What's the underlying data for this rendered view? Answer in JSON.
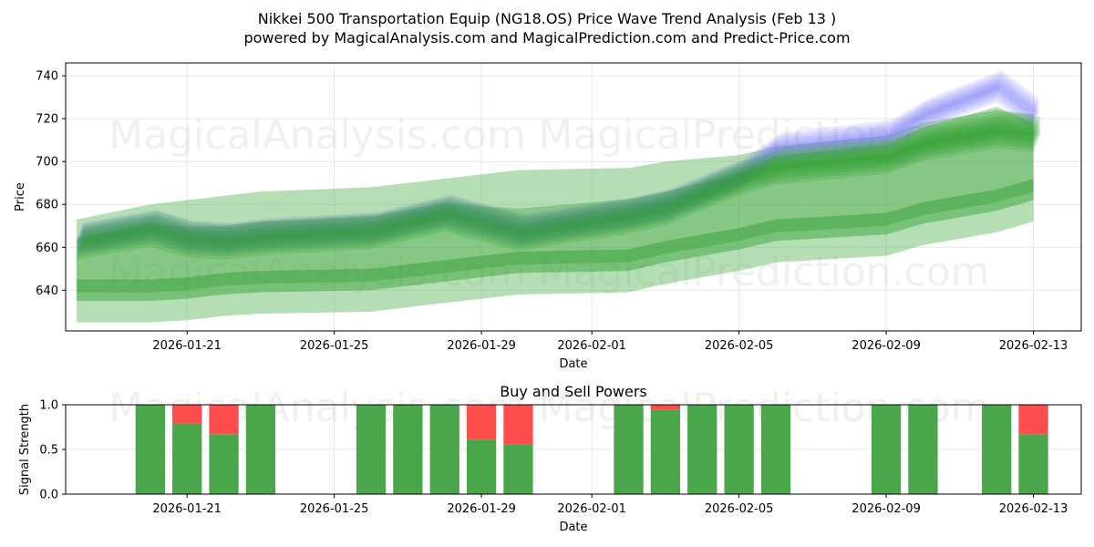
{
  "title_line1": "Nikkei 500 Transportation Equip (NG18.OS) Price Wave Trend Analysis (Feb 13 )",
  "title_line2": "powered by MagicalAnalysis.com and MagicalPrediction.com and Predict-Price.com",
  "watermarks": [
    "MagicalAnalysis.com",
    "MagicalPrediction.com"
  ],
  "colors": {
    "price_band": "#2e9e2e",
    "price_band_light": "#5ab55a",
    "wave": "#6a6af5",
    "buy": "#4aa64a",
    "sell": "#ff4c4c",
    "grid": "#e6e6e6"
  },
  "chart_data": [
    {
      "type": "area",
      "title": "",
      "xlabel": "Date",
      "ylabel": "Price",
      "xlim": [
        "2026-01-17.7",
        "2026-02-14.3"
      ],
      "ylim": [
        621,
        746
      ],
      "x_ticks": [
        "2026-01-21",
        "2026-01-25",
        "2026-01-29",
        "2026-02-01",
        "2026-02-05",
        "2026-02-09",
        "2026-02-13"
      ],
      "y_ticks": [
        640,
        660,
        680,
        700,
        720,
        740
      ],
      "dates": [
        "2026-01-18",
        "2026-01-20",
        "2026-01-21",
        "2026-01-22",
        "2026-01-23",
        "2026-01-26",
        "2026-01-28",
        "2026-01-30",
        "2026-02-02",
        "2026-02-03",
        "2026-02-05",
        "2026-02-06",
        "2026-02-09",
        "2026-02-10",
        "2026-02-12",
        "2026-02-13"
      ],
      "series": [
        {
          "name": "wave-trend-center",
          "values": [
            664,
            670,
            665,
            664,
            666,
            669,
            677,
            668,
            676,
            680,
            694,
            706,
            712,
            722,
            735,
            722
          ]
        },
        {
          "name": "green-band-upper",
          "values": [
            673,
            680,
            682,
            684,
            686,
            688,
            692,
            696,
            697,
            700,
            703,
            707,
            712,
            718,
            724,
            722
          ]
        },
        {
          "name": "green-band-lower",
          "values": [
            625,
            625,
            626,
            628,
            629,
            630,
            634,
            638,
            639,
            643,
            649,
            653,
            656,
            661,
            667,
            672
          ]
        }
      ]
    },
    {
      "type": "bar",
      "title": "Buy and Sell Powers",
      "xlabel": "Date",
      "ylabel": "Signal Strength",
      "ylim": [
        0,
        1
      ],
      "y_ticks": [
        "0.0",
        "0.5",
        "1.0"
      ],
      "x_ticks": [
        "2026-01-21",
        "2026-01-25",
        "2026-01-29",
        "2026-02-01",
        "2026-02-05",
        "2026-02-09",
        "2026-02-13"
      ],
      "bars": [
        {
          "date": "2026-01-20",
          "buy": 1.0
        },
        {
          "date": "2026-01-21",
          "buy": 0.79
        },
        {
          "date": "2026-01-22",
          "buy": 0.67
        },
        {
          "date": "2026-01-23",
          "buy": 1.0
        },
        {
          "date": "2026-01-26",
          "buy": 1.0
        },
        {
          "date": "2026-01-27",
          "buy": 1.0
        },
        {
          "date": "2026-01-28",
          "buy": 1.0
        },
        {
          "date": "2026-01-29",
          "buy": 0.61
        },
        {
          "date": "2026-01-30",
          "buy": 0.56
        },
        {
          "date": "2026-02-02",
          "buy": 1.0
        },
        {
          "date": "2026-02-03",
          "buy": 0.94
        },
        {
          "date": "2026-02-04",
          "buy": 1.0
        },
        {
          "date": "2026-02-05",
          "buy": 1.0
        },
        {
          "date": "2026-02-06",
          "buy": 1.0
        },
        {
          "date": "2026-02-09",
          "buy": 1.0
        },
        {
          "date": "2026-02-10",
          "buy": 1.0
        },
        {
          "date": "2026-02-12",
          "buy": 1.0
        },
        {
          "date": "2026-02-13",
          "buy": 0.67
        }
      ]
    }
  ]
}
